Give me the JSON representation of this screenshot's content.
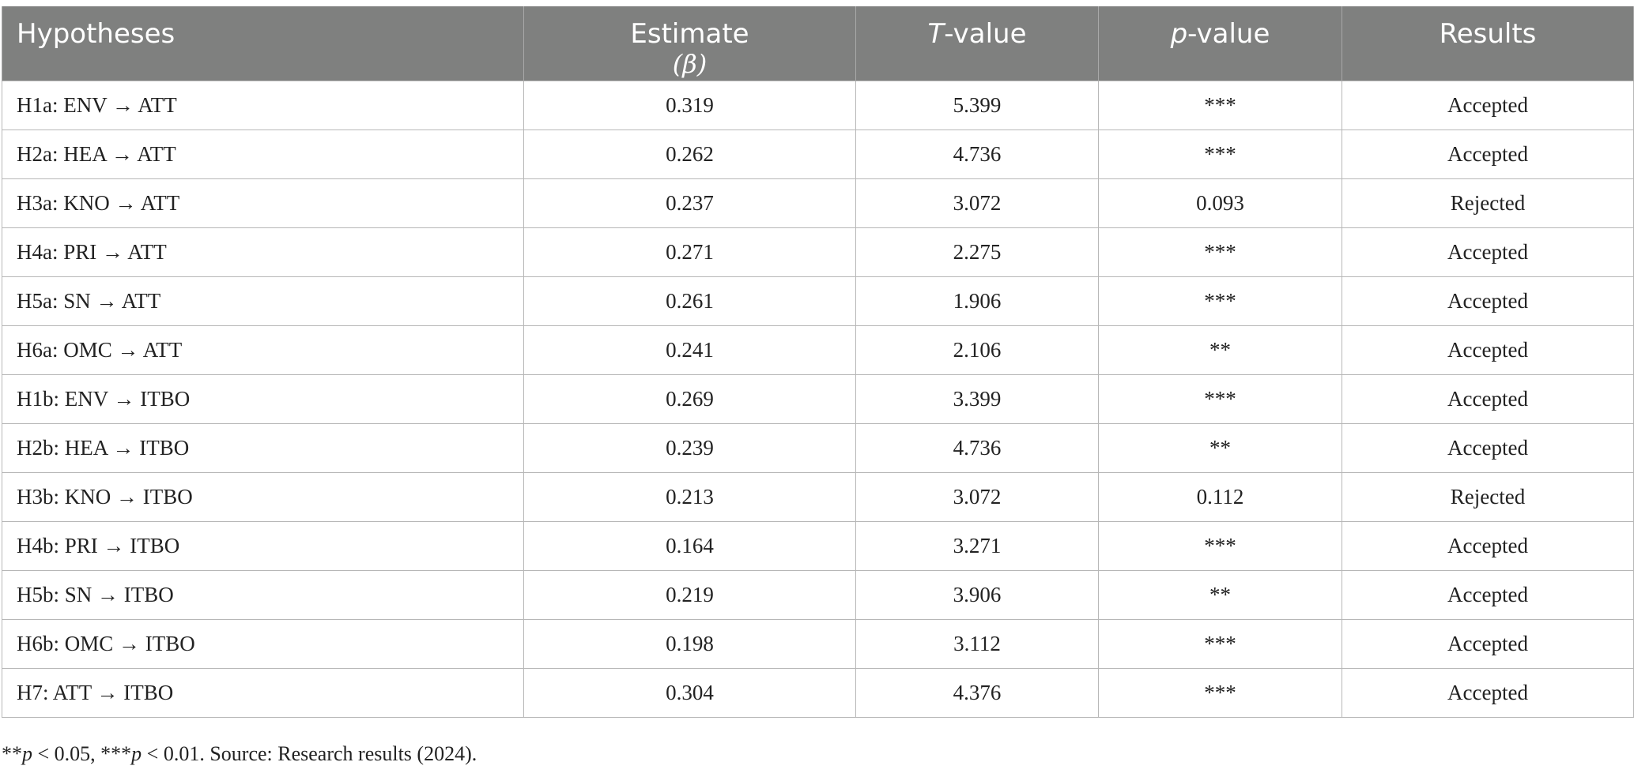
{
  "table": {
    "headers": {
      "hypotheses": "Hypotheses",
      "estimate": "Estimate",
      "estimate_symbol": "(β)",
      "t_value_prefix": "T",
      "t_value_suffix": "-value",
      "p_value_prefix": "p",
      "p_value_suffix": "-value",
      "results": "Results"
    },
    "rows": [
      {
        "hypothesis": "H1a: ENV → ATT",
        "estimate": "0.319",
        "t_value": "5.399",
        "p_value": "***",
        "result": "Accepted"
      },
      {
        "hypothesis": "H2a: HEA → ATT",
        "estimate": "0.262",
        "t_value": "4.736",
        "p_value": "***",
        "result": "Accepted"
      },
      {
        "hypothesis": "H3a: KNO → ATT",
        "estimate": "0.237",
        "t_value": "3.072",
        "p_value": "0.093",
        "result": "Rejected"
      },
      {
        "hypothesis": "H4a: PRI → ATT",
        "estimate": "0.271",
        "t_value": "2.275",
        "p_value": "***",
        "result": "Accepted"
      },
      {
        "hypothesis": "H5a: SN → ATT",
        "estimate": "0.261",
        "t_value": "1.906",
        "p_value": "***",
        "result": "Accepted"
      },
      {
        "hypothesis": "H6a: OMC → ATT",
        "estimate": "0.241",
        "t_value": "2.106",
        "p_value": "**",
        "result": "Accepted"
      },
      {
        "hypothesis": "H1b: ENV → ITBO",
        "estimate": "0.269",
        "t_value": "3.399",
        "p_value": "***",
        "result": "Accepted"
      },
      {
        "hypothesis": "H2b: HEA → ITBO",
        "estimate": "0.239",
        "t_value": "4.736",
        "p_value": "**",
        "result": "Accepted"
      },
      {
        "hypothesis": "H3b: KNO → ITBO",
        "estimate": "0.213",
        "t_value": "3.072",
        "p_value": "0.112",
        "result": "Rejected"
      },
      {
        "hypothesis": "H4b: PRI → ITBO",
        "estimate": "0.164",
        "t_value": "3.271",
        "p_value": "***",
        "result": "Accepted"
      },
      {
        "hypothesis": "H5b: SN → ITBO",
        "estimate": "0.219",
        "t_value": "3.906",
        "p_value": "**",
        "result": "Accepted"
      },
      {
        "hypothesis": "H6b: OMC → ITBO",
        "estimate": "0.198",
        "t_value": "3.112",
        "p_value": "***",
        "result": "Accepted"
      },
      {
        "hypothesis": "H7: ATT → ITBO",
        "estimate": "0.304",
        "t_value": "4.376",
        "p_value": "***",
        "result": "Accepted"
      }
    ]
  },
  "footnote": {
    "part1": "**",
    "p1": "p",
    "part2": " < 0.05, ***",
    "p2": "p",
    "part3": " < 0.01. Source: Research results (2024)."
  },
  "colors": {
    "header_bg": "#7f807f",
    "header_text": "#ffffff",
    "border": "#b7b7b7",
    "body_text": "#222222"
  }
}
